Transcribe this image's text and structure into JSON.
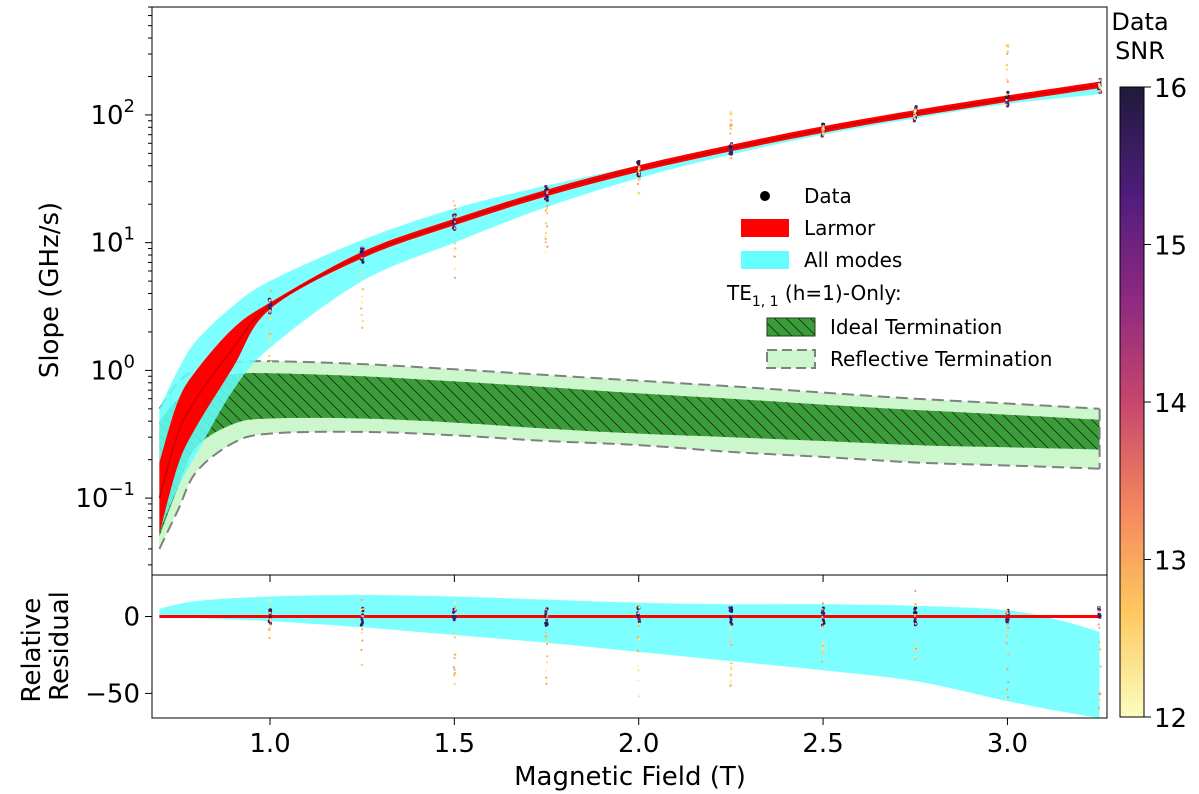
{
  "chart_data": [
    {
      "type": "line",
      "panel": "main",
      "xlabel": "Magnetic Field (T)",
      "ylabel": "Slope (GHz/s)",
      "yscale": "log",
      "xlim": [
        0.68,
        3.27
      ],
      "ylim": [
        0.025,
        700
      ],
      "xticks": [
        1.0,
        1.5,
        2.0,
        2.5,
        3.0
      ],
      "xtick_labels": [
        "1.0",
        "1.5",
        "2.0",
        "2.5",
        "3.0"
      ],
      "yticks": [
        0.1,
        1,
        10,
        100
      ],
      "ytick_labels": [
        "10",
        "10",
        "10",
        "10"
      ],
      "ytick_exponents": [
        "−1",
        "0",
        "1",
        "2"
      ],
      "grid": false,
      "legend_position": "center-right",
      "legend": {
        "data": "Data",
        "larmor": "Larmor",
        "all_modes": "All modes",
        "te_heading_main": "TE",
        "te_heading_sub": "1, 1",
        "te_heading_rest": " (h=1)-Only:",
        "ideal": "Ideal Termination",
        "reflective": "Reflective Termination"
      },
      "x": [
        0.7,
        0.75,
        0.8,
        0.9,
        1.0,
        1.25,
        1.5,
        1.75,
        2.0,
        2.25,
        2.5,
        2.75,
        3.0,
        3.25
      ],
      "series": [
        {
          "name": "Larmor",
          "color": "#ff0000",
          "y": [
            0.1,
            0.32,
            0.6,
            1.5,
            3.2,
            8.0,
            14.5,
            24.5,
            38,
            55,
            77,
            103,
            134,
            172
          ]
        },
        {
          "name": "All modes upper",
          "color": "#66ffff",
          "y": [
            0.5,
            1.0,
            1.7,
            3.2,
            5.0,
            10.5,
            18.5,
            28,
            40,
            57,
            79,
            103,
            133,
            168
          ]
        },
        {
          "name": "All modes lower",
          "color": "#66ffff",
          "y": [
            0.055,
            0.12,
            0.22,
            0.7,
            1.5,
            5.0,
            10.0,
            19.0,
            32,
            49,
            70,
            94,
            122,
            145
          ]
        },
        {
          "name": "Ideal Termination upper",
          "color": "#3a9d3a",
          "y": [
            0.4,
            0.6,
            0.78,
            0.93,
            0.95,
            0.9,
            0.82,
            0.74,
            0.66,
            0.6,
            0.54,
            0.49,
            0.45,
            0.41
          ]
        },
        {
          "name": "Ideal Termination lower",
          "color": "#3a9d3a",
          "y": [
            0.05,
            0.12,
            0.25,
            0.38,
            0.42,
            0.42,
            0.39,
            0.35,
            0.32,
            0.3,
            0.28,
            0.26,
            0.25,
            0.24
          ]
        },
        {
          "name": "Reflective Termination upper",
          "color": "#ccf7cc",
          "y": [
            0.5,
            0.8,
            1.0,
            1.15,
            1.18,
            1.12,
            1.02,
            0.92,
            0.83,
            0.75,
            0.67,
            0.6,
            0.55,
            0.5
          ]
        },
        {
          "name": "Reflective Termination lower",
          "color": "#ccf7cc",
          "y": [
            0.04,
            0.08,
            0.16,
            0.27,
            0.32,
            0.33,
            0.31,
            0.28,
            0.26,
            0.23,
            0.21,
            0.19,
            0.18,
            0.17
          ]
        }
      ],
      "data_points": {
        "name": "Data",
        "x": [
          1.0,
          1.25,
          1.5,
          1.75,
          2.0,
          2.25,
          2.5,
          2.75,
          3.0,
          3.25
        ],
        "y_center": [
          3.2,
          8.0,
          14.5,
          24.5,
          38,
          55,
          77,
          103,
          134,
          172
        ],
        "y_min": [
          0.9,
          1.6,
          4.5,
          8.0,
          24,
          45,
          70,
          92,
          118,
          150
        ],
        "y_max": [
          4.8,
          9.5,
          22,
          27,
          42,
          107,
          82,
          112,
          420,
          190
        ]
      }
    },
    {
      "type": "line",
      "panel": "residual",
      "xlabel": "Magnetic Field (T)",
      "ylabel_line1": "Relative",
      "ylabel_line2": "Residual",
      "xlim": [
        0.68,
        3.27
      ],
      "ylim": [
        -66,
        27
      ],
      "yticks": [
        0,
        -50
      ],
      "ytick_labels": [
        "0",
        "−50"
      ],
      "x": [
        0.7,
        0.8,
        1.0,
        1.25,
        1.5,
        1.75,
        2.0,
        2.25,
        2.5,
        2.75,
        3.0,
        3.15,
        3.25
      ],
      "series": [
        {
          "name": "Larmor",
          "color": "#ff0000",
          "y": [
            0,
            0,
            0,
            0,
            0,
            0,
            0,
            0,
            0,
            0,
            0,
            0,
            0
          ]
        },
        {
          "name": "All modes upper",
          "color": "#66ffff",
          "y": [
            5,
            10,
            13,
            14,
            13,
            11,
            9,
            8,
            8,
            7,
            4,
            -3,
            -10
          ]
        },
        {
          "name": "All modes lower",
          "color": "#66ffff",
          "y": [
            0,
            -1,
            -3,
            -7,
            -12,
            -17,
            -23,
            -29,
            -35,
            -42,
            -55,
            -62,
            -66
          ]
        }
      ],
      "data_points": {
        "name": "Data",
        "x": [
          1.0,
          1.25,
          1.5,
          1.75,
          2.0,
          2.25,
          2.5,
          2.75,
          3.0,
          3.25
        ],
        "y_min": [
          -14,
          -33,
          -50,
          -45,
          -52,
          -48,
          -30,
          -45,
          -58,
          -60
        ],
        "y_max": [
          12,
          12,
          10,
          10,
          9,
          8,
          13,
          19,
          11,
          7
        ]
      }
    },
    {
      "type": "colorbar",
      "title_line1": "Data",
      "title_line2": "SNR",
      "range": [
        12,
        16
      ],
      "ticks": [
        12,
        13,
        14,
        15,
        16
      ],
      "tick_labels": [
        "12",
        "13",
        "14",
        "15",
        "16"
      ],
      "colormap": "inferno-like",
      "stops": [
        "#fcfdbf",
        "#fec85f",
        "#f4865e",
        "#c7456d",
        "#8c2981",
        "#4f1c7c",
        "#1f1b3a"
      ]
    }
  ],
  "colors": {
    "larmor": "#ff0000",
    "all_modes": "#66ffff",
    "ideal": "#3a9d3a",
    "reflective": "#ccf7cc",
    "reflective_edge": "#808080"
  }
}
